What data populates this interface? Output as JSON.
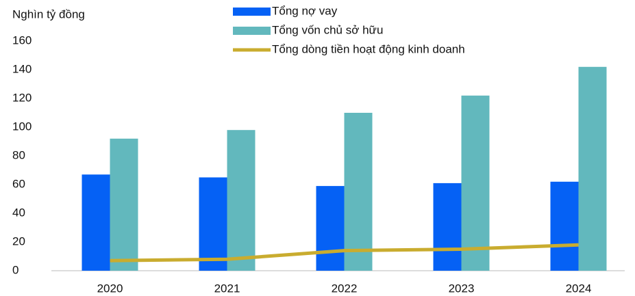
{
  "chart_data": {
    "type": "bar_line",
    "y_axis_label": "Nghìn tỷ đồng",
    "categories": [
      "2020",
      "2021",
      "2022",
      "2023",
      "2024"
    ],
    "series": [
      {
        "name": "Tổng nợ vay",
        "type": "bar",
        "color": "#0561f5",
        "values": [
          67,
          65,
          59,
          61,
          62
        ]
      },
      {
        "name": "Tổng vốn chủ sở hữu",
        "type": "bar",
        "color": "#62b8bd",
        "values": [
          92,
          98,
          110,
          122,
          142
        ]
      },
      {
        "name": "Tổng dòng tiền hoạt động kinh doanh",
        "type": "line",
        "color": "#c9ac2f",
        "values": [
          7,
          8,
          14,
          15,
          18
        ]
      }
    ],
    "ylim": [
      0,
      160
    ],
    "yticks": [
      0,
      20,
      40,
      60,
      80,
      100,
      120,
      140,
      160
    ],
    "grid": false,
    "legend": "top"
  }
}
